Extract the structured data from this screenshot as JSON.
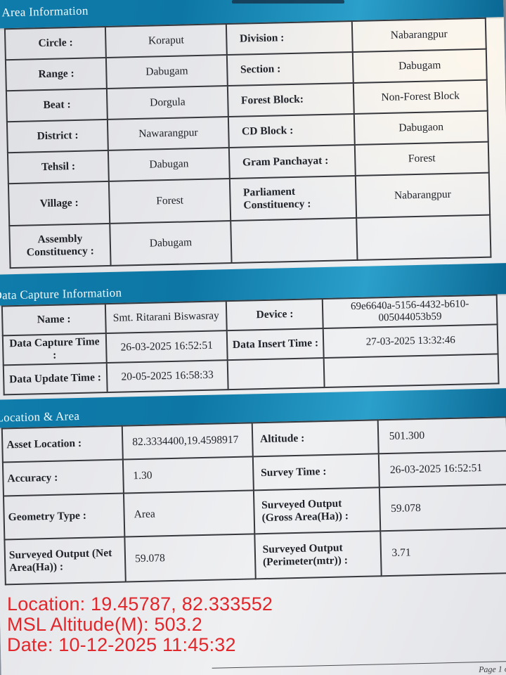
{
  "sections": {
    "area": {
      "title": "Area Information",
      "rows": [
        {
          "c0": "Circle :",
          "c1": "Koraput",
          "c2": "Division :",
          "c3": "Nabarangpur"
        },
        {
          "c0": "Range :",
          "c1": "Dabugam",
          "c2": "Section :",
          "c3": "Dabugam"
        },
        {
          "c0": "Beat :",
          "c1": "Dorgula",
          "c2": "Forest Block:",
          "c3": "Non-Forest Block"
        },
        {
          "c0": "District :",
          "c1": "Nawarangpur",
          "c2": "CD Block :",
          "c3": "Dabugaon"
        },
        {
          "c0": "Tehsil :",
          "c1": "Dabugan",
          "c2": "Gram Panchayat :",
          "c3": "Forest"
        },
        {
          "c0": "Village :",
          "c1": "Forest",
          "c2": "Parliament Constituency :",
          "c3": "Nabarangpur"
        },
        {
          "c0": "Assembly Constituency :",
          "c1": "Dabugam",
          "c2": "",
          "c3": ""
        }
      ]
    },
    "capture": {
      "title": "Data Capture Information",
      "rows": [
        {
          "c0": "Name :",
          "c1": "Smt. Ritarani Biswasray",
          "c2": "Device :",
          "c3": "69e6640a-5156-4432-b610-005044053b59"
        },
        {
          "c0": "Data Capture Time :",
          "c1": "26-03-2025 16:52:51",
          "c2": "Data Insert Time :",
          "c3": "27-03-2025 13:32:46"
        },
        {
          "c0": "Data Update Time :",
          "c1": "20-05-2025 16:58:33",
          "c2": "",
          "c3": ""
        }
      ]
    },
    "location": {
      "title": "Location & Area",
      "rows": [
        {
          "c0": "Asset Location :",
          "c1": "82.3334400,19.4598917",
          "c2": "Altitude :",
          "c3": "501.300"
        },
        {
          "c0": "Accuracy :",
          "c1": "1.30",
          "c2": "Survey Time :",
          "c3": "26-03-2025 16:52:51"
        },
        {
          "c0": "Geometry Type :",
          "c1": "Area",
          "c2": "Surveyed Output (Gross Area(Ha)) :",
          "c3": "59.078"
        },
        {
          "c0": "Surveyed Output (Net Area(Ha)) :",
          "c1": "59.078",
          "c2": "Surveyed Output (Perimeter(mtr)) :",
          "c3": "3.71"
        }
      ]
    }
  },
  "gps_overlay": {
    "location_line": "Location: 19.45787, 82.333552",
    "altitude_line": "MSL Altitude(M): 503.2",
    "date_line": "Date: 10-12-2025 11:45:32"
  },
  "footer": {
    "page_label": "Page 1 o"
  },
  "colors": {
    "banner_teal": "#0f7cab",
    "overlay_red": "#e1272b",
    "paper": "#e7e8eb",
    "table_border": "#36383d"
  }
}
